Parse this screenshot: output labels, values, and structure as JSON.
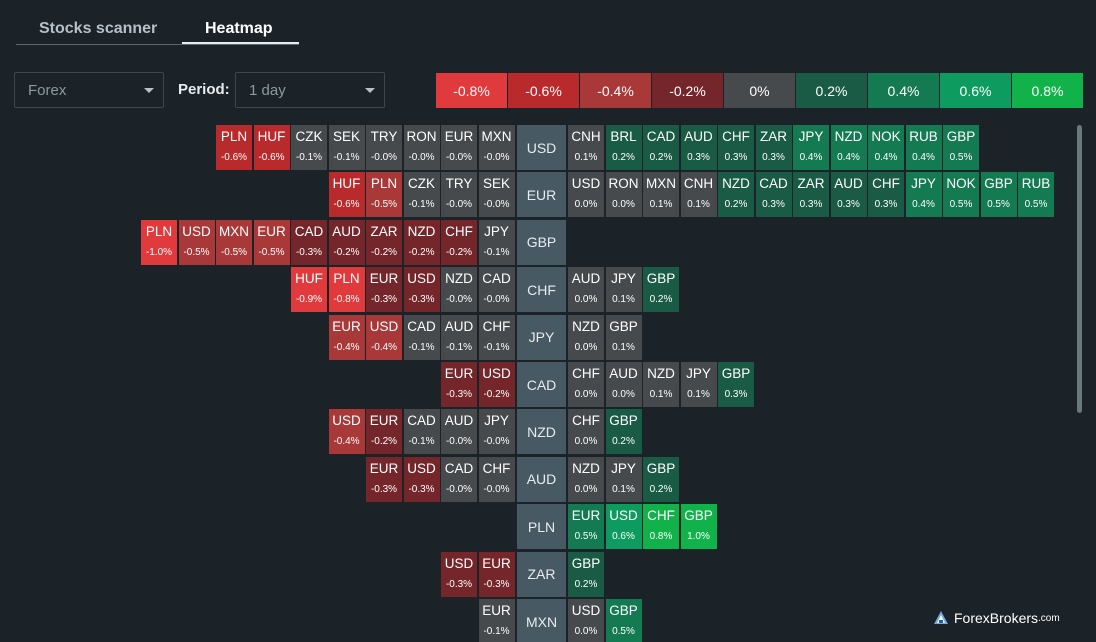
{
  "tabs": [
    {
      "label": "Stocks scanner",
      "active": false
    },
    {
      "label": "Heatmap",
      "active": true
    }
  ],
  "filters": {
    "market": {
      "value": "Forex"
    },
    "period_label": "Period:",
    "period": {
      "value": "1 day"
    }
  },
  "legend": [
    {
      "label": "-0.8%",
      "color": "#e03a3c"
    },
    {
      "label": "-0.6%",
      "color": "#b82a2b"
    },
    {
      "label": "-0.4%",
      "color": "#a93838"
    },
    {
      "label": "-0.2%",
      "color": "#74262a"
    },
    {
      "label": "0%",
      "color": "#474a4d"
    },
    {
      "label": "0.2%",
      "color": "#1a5b45"
    },
    {
      "label": "0.4%",
      "color": "#137a52"
    },
    {
      "label": "0.6%",
      "color": "#0e9b5f"
    },
    {
      "label": "0.8%",
      "color": "#12b24a"
    }
  ],
  "heatmap": [
    {
      "base": "USD",
      "losers": [
        [
          "PLN",
          "-0.6%"
        ],
        [
          "HUF",
          "-0.6%"
        ],
        [
          "CZK",
          "-0.1%"
        ],
        [
          "SEK",
          "-0.1%"
        ],
        [
          "TRY",
          "-0.0%"
        ],
        [
          "RON",
          "-0.0%"
        ],
        [
          "EUR",
          "-0.0%"
        ],
        [
          "MXN",
          "-0.0%"
        ]
      ],
      "gainers": [
        [
          "CNH",
          "0.1%"
        ],
        [
          "BRL",
          "0.2%"
        ],
        [
          "CAD",
          "0.2%"
        ],
        [
          "AUD",
          "0.3%"
        ],
        [
          "CHF",
          "0.3%"
        ],
        [
          "ZAR",
          "0.3%"
        ],
        [
          "JPY",
          "0.4%"
        ],
        [
          "NZD",
          "0.4%"
        ],
        [
          "NOK",
          "0.4%"
        ],
        [
          "RUB",
          "0.4%"
        ],
        [
          "GBP",
          "0.5%"
        ]
      ]
    },
    {
      "base": "EUR",
      "losers": [
        [
          "HUF",
          "-0.6%"
        ],
        [
          "PLN",
          "-0.5%"
        ],
        [
          "CZK",
          "-0.1%"
        ],
        [
          "TRY",
          "-0.0%"
        ],
        [
          "SEK",
          "-0.0%"
        ]
      ],
      "gainers": [
        [
          "USD",
          "0.0%"
        ],
        [
          "RON",
          "0.0%"
        ],
        [
          "MXN",
          "0.1%"
        ],
        [
          "CNH",
          "0.1%"
        ],
        [
          "NZD",
          "0.2%"
        ],
        [
          "CAD",
          "0.3%"
        ],
        [
          "ZAR",
          "0.3%"
        ],
        [
          "AUD",
          "0.3%"
        ],
        [
          "CHF",
          "0.3%"
        ],
        [
          "JPY",
          "0.4%"
        ],
        [
          "NOK",
          "0.5%"
        ],
        [
          "GBP",
          "0.5%"
        ],
        [
          "RUB",
          "0.5%"
        ]
      ]
    },
    {
      "base": "GBP",
      "losers": [
        [
          "PLN",
          "-1.0%"
        ],
        [
          "USD",
          "-0.5%"
        ],
        [
          "MXN",
          "-0.5%"
        ],
        [
          "EUR",
          "-0.5%"
        ],
        [
          "CAD",
          "-0.3%"
        ],
        [
          "AUD",
          "-0.2%"
        ],
        [
          "ZAR",
          "-0.2%"
        ],
        [
          "NZD",
          "-0.2%"
        ],
        [
          "CHF",
          "-0.2%"
        ],
        [
          "JPY",
          "-0.1%"
        ]
      ],
      "gainers": []
    },
    {
      "base": "CHF",
      "losers": [
        [
          "HUF",
          "-0.9%"
        ],
        [
          "PLN",
          "-0.8%"
        ],
        [
          "EUR",
          "-0.3%"
        ],
        [
          "USD",
          "-0.3%"
        ],
        [
          "NZD",
          "-0.0%"
        ],
        [
          "CAD",
          "-0.0%"
        ]
      ],
      "gainers": [
        [
          "AUD",
          "0.0%"
        ],
        [
          "JPY",
          "0.1%"
        ],
        [
          "GBP",
          "0.2%"
        ]
      ]
    },
    {
      "base": "JPY",
      "losers": [
        [
          "EUR",
          "-0.4%"
        ],
        [
          "USD",
          "-0.4%"
        ],
        [
          "CAD",
          "-0.1%"
        ],
        [
          "AUD",
          "-0.1%"
        ],
        [
          "CHF",
          "-0.1%"
        ]
      ],
      "gainers": [
        [
          "NZD",
          "0.0%"
        ],
        [
          "GBP",
          "0.1%"
        ]
      ]
    },
    {
      "base": "CAD",
      "losers": [
        [
          "EUR",
          "-0.3%"
        ],
        [
          "USD",
          "-0.2%"
        ]
      ],
      "gainers": [
        [
          "CHF",
          "0.0%"
        ],
        [
          "AUD",
          "0.0%"
        ],
        [
          "NZD",
          "0.1%"
        ],
        [
          "JPY",
          "0.1%"
        ],
        [
          "GBP",
          "0.3%"
        ]
      ]
    },
    {
      "base": "NZD",
      "losers": [
        [
          "USD",
          "-0.4%"
        ],
        [
          "EUR",
          "-0.2%"
        ],
        [
          "CAD",
          "-0.1%"
        ],
        [
          "AUD",
          "-0.0%"
        ],
        [
          "JPY",
          "-0.0%"
        ]
      ],
      "gainers": [
        [
          "CHF",
          "0.0%"
        ],
        [
          "GBP",
          "0.2%"
        ]
      ]
    },
    {
      "base": "AUD",
      "losers": [
        [
          "EUR",
          "-0.3%"
        ],
        [
          "USD",
          "-0.3%"
        ],
        [
          "CAD",
          "-0.0%"
        ],
        [
          "CHF",
          "-0.0%"
        ]
      ],
      "gainers": [
        [
          "NZD",
          "0.0%"
        ],
        [
          "JPY",
          "0.1%"
        ],
        [
          "GBP",
          "0.2%"
        ]
      ]
    },
    {
      "base": "PLN",
      "losers": [],
      "gainers": [
        [
          "EUR",
          "0.5%"
        ],
        [
          "USD",
          "0.6%"
        ],
        [
          "CHF",
          "0.8%"
        ],
        [
          "GBP",
          "1.0%"
        ]
      ]
    },
    {
      "base": "ZAR",
      "losers": [
        [
          "USD",
          "-0.3%"
        ],
        [
          "EUR",
          "-0.3%"
        ]
      ],
      "gainers": [
        [
          "GBP",
          "0.2%"
        ]
      ]
    },
    {
      "base": "MXN",
      "losers": [
        [
          "EUR",
          "-0.1%"
        ]
      ],
      "gainers": [
        [
          "USD",
          "0.0%"
        ],
        [
          "GBP",
          "0.5%"
        ]
      ]
    }
  ],
  "watermark": {
    "brand": "ForexBrokers",
    "suffix": ".com"
  }
}
